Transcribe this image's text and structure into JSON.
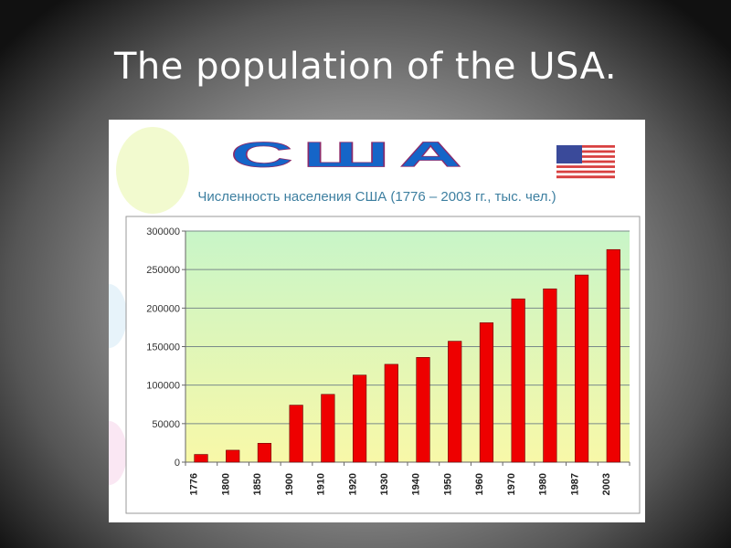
{
  "slide": {
    "title": "The population of the USA."
  },
  "logo": {
    "text": "США"
  },
  "flag": {
    "icon": "us-flag-icon"
  },
  "colors": {
    "bar": "#ee0000",
    "plot_top": "#c8f5c8",
    "plot_bottom": "#f8f8a8",
    "subtitle": "#3d7fa0",
    "logo": "#1565c8"
  },
  "chart_data": {
    "type": "bar",
    "title": "Численность населения США (1776 – 2003 гг., тыс. чел.)",
    "categories": [
      "1776",
      "1800",
      "1850",
      "1900",
      "1910",
      "1920",
      "1930",
      "1940",
      "1950",
      "1960",
      "1970",
      "1980",
      "1987",
      "2003"
    ],
    "values": [
      10000,
      15500,
      24500,
      74000,
      88000,
      113000,
      127000,
      136000,
      157000,
      181000,
      212000,
      225000,
      243000,
      276000
    ],
    "ylim": [
      0,
      300000
    ],
    "yticks": [
      "0",
      "50000",
      "100000",
      "150000",
      "200000",
      "250000",
      "300000"
    ],
    "grid": true,
    "legend": "none"
  }
}
